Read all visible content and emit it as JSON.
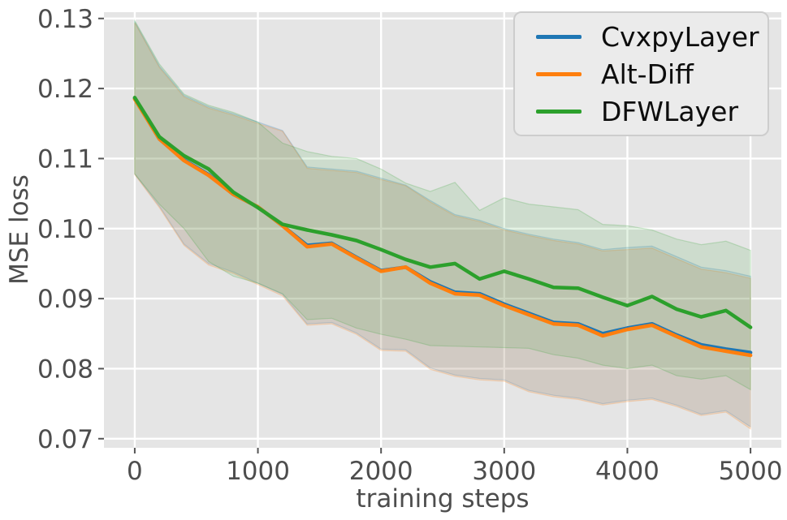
{
  "figure": {
    "bg": "#ffffff",
    "plot_bg": "#e5e5e5",
    "grid_color": "#ffffff",
    "tick_color": "#4d4d4d",
    "tick_mark_color": "#555555"
  },
  "chart_data": {
    "type": "line",
    "title": "",
    "xlabel": "training steps",
    "ylabel": "MSE loss",
    "xlim": [
      -250,
      5250
    ],
    "ylim": [
      0.0687,
      0.1309
    ],
    "xticks": [
      0,
      1000,
      2000,
      3000,
      4000,
      5000
    ],
    "yticks": [
      0.07,
      0.08,
      0.09,
      0.1,
      0.11,
      0.12,
      0.13
    ],
    "grid": true,
    "legend_position": "upper right",
    "x": [
      0,
      200,
      400,
      600,
      800,
      1000,
      1200,
      1400,
      1600,
      1800,
      2000,
      2200,
      2400,
      2600,
      2800,
      3000,
      3200,
      3400,
      3600,
      3800,
      4000,
      4200,
      4400,
      4600,
      4800,
      5000
    ],
    "series": [
      {
        "name": "CvxpyLayer",
        "color": "#1f77b4",
        "values": [
          0.1186,
          0.1128,
          0.1098,
          0.1077,
          0.1049,
          0.1031,
          0.1004,
          0.0976,
          0.0979,
          0.0959,
          0.094,
          0.0945,
          0.0924,
          0.0909,
          0.0907,
          0.0892,
          0.0879,
          0.0866,
          0.0864,
          0.085,
          0.0858,
          0.0864,
          0.0848,
          0.0834,
          0.0828,
          0.0823
        ],
        "band_lower": [
          0.1078,
          0.1032,
          0.0978,
          0.095,
          0.0938,
          0.0922,
          0.0906,
          0.0864,
          0.0866,
          0.0851,
          0.0828,
          0.0827,
          0.0801,
          0.0791,
          0.0786,
          0.0784,
          0.0769,
          0.0762,
          0.0758,
          0.075,
          0.0755,
          0.0758,
          0.0748,
          0.0735,
          0.074,
          0.0717
        ],
        "band_upper": [
          0.1295,
          0.1232,
          0.119,
          0.1174,
          0.1164,
          0.1152,
          0.114,
          0.1088,
          0.1085,
          0.1082,
          0.1072,
          0.1062,
          0.104,
          0.102,
          0.1012,
          0.1,
          0.0992,
          0.0985,
          0.098,
          0.097,
          0.0973,
          0.0975,
          0.096,
          0.0945,
          0.094,
          0.0932
        ]
      },
      {
        "name": "Alt-Diff",
        "color": "#ff7f0e",
        "values": [
          0.1185,
          0.1128,
          0.1097,
          0.1076,
          0.1049,
          0.1031,
          0.1004,
          0.0974,
          0.0978,
          0.0958,
          0.0939,
          0.0945,
          0.0922,
          0.0907,
          0.0905,
          0.089,
          0.0877,
          0.0864,
          0.0862,
          0.0847,
          0.0856,
          0.0862,
          0.0846,
          0.0831,
          0.0825,
          0.0819
        ],
        "band_lower": [
          0.1077,
          0.103,
          0.0976,
          0.0948,
          0.0936,
          0.092,
          0.0904,
          0.0862,
          0.0864,
          0.0849,
          0.0826,
          0.0825,
          0.0799,
          0.0789,
          0.0784,
          0.0782,
          0.0767,
          0.076,
          0.0756,
          0.0748,
          0.0753,
          0.0756,
          0.0746,
          0.0733,
          0.0738,
          0.0714
        ],
        "band_upper": [
          0.1294,
          0.123,
          0.1188,
          0.1172,
          0.1162,
          0.115,
          0.1139,
          0.1086,
          0.1083,
          0.108,
          0.107,
          0.1061,
          0.1038,
          0.1018,
          0.101,
          0.0998,
          0.099,
          0.0983,
          0.0978,
          0.0968,
          0.097,
          0.0972,
          0.0957,
          0.0942,
          0.0937,
          0.0929
        ]
      },
      {
        "name": "DFWLayer",
        "color": "#2ca02c",
        "values": [
          0.1187,
          0.1131,
          0.1104,
          0.1085,
          0.1052,
          0.103,
          0.1006,
          0.0998,
          0.0991,
          0.0983,
          0.097,
          0.0956,
          0.0945,
          0.095,
          0.0928,
          0.0939,
          0.0928,
          0.0916,
          0.0915,
          0.0902,
          0.089,
          0.0903,
          0.0885,
          0.0874,
          0.0883,
          0.0859
        ],
        "band_lower": [
          0.1078,
          0.1035,
          0.1,
          0.0953,
          0.0932,
          0.0922,
          0.0907,
          0.087,
          0.0872,
          0.0858,
          0.0849,
          0.0842,
          0.0833,
          0.0832,
          0.0831,
          0.083,
          0.0829,
          0.082,
          0.0815,
          0.0805,
          0.08,
          0.0805,
          0.079,
          0.0785,
          0.079,
          0.077
        ],
        "band_upper": [
          0.1297,
          0.1235,
          0.1192,
          0.1176,
          0.1166,
          0.1152,
          0.1122,
          0.111,
          0.1103,
          0.11,
          0.1085,
          0.1065,
          0.1053,
          0.1066,
          0.1026,
          0.1044,
          0.1035,
          0.1031,
          0.1027,
          0.1006,
          0.1004,
          0.0998,
          0.0985,
          0.0977,
          0.0982,
          0.0969
        ]
      }
    ]
  },
  "legend": {
    "items": [
      {
        "label": "CvxpyLayer",
        "color": "#1f77b4"
      },
      {
        "label": "Alt-Diff",
        "color": "#ff7f0e"
      },
      {
        "label": "DFWLayer",
        "color": "#2ca02c"
      }
    ]
  }
}
